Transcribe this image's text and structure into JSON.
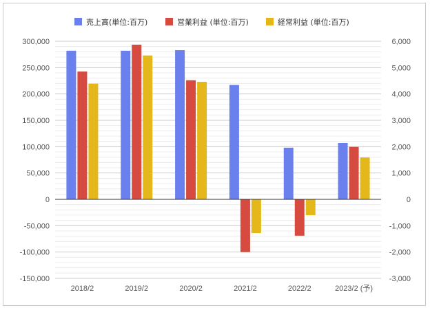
{
  "chart_data": {
    "type": "bar",
    "categories": [
      "2018/2",
      "2019/2",
      "2020/2",
      "2021/2",
      "2022/2",
      "2023/2 (予)"
    ],
    "series": [
      {
        "name": "売上高(単位:百万)",
        "axis": "left",
        "color": "#6a80ec",
        "values": [
          282000,
          282000,
          283000,
          217000,
          98000,
          107000
        ]
      },
      {
        "name": "営業利益 (単位:百万)",
        "axis": "right",
        "color": "#d64a3f",
        "values": [
          4850,
          5870,
          4520,
          -2000,
          -1380,
          1990
        ]
      },
      {
        "name": "経常利益 (単位:百万)",
        "axis": "right",
        "color": "#e4b81a",
        "values": [
          4390,
          5460,
          4460,
          -1280,
          -600,
          1590
        ]
      }
    ],
    "y_left": {
      "min": -150000,
      "max": 300000,
      "ticks": [
        "300,000",
        "250,000",
        "200,000",
        "150,000",
        "100,000",
        "50,000",
        "0",
        "-50,000",
        "-100,000",
        "-150,000"
      ]
    },
    "y_right": {
      "min": -3000,
      "max": 6000,
      "ticks": [
        "6,000",
        "5,000",
        "4,000",
        "3,000",
        "2,000",
        "1,000",
        "0",
        "-1,000",
        "-2,000",
        "-3,000"
      ]
    },
    "legend_position": "top",
    "grid": true
  }
}
